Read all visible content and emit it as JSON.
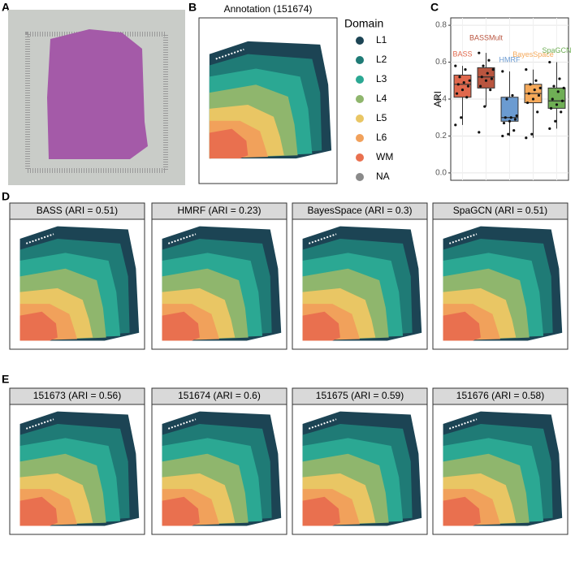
{
  "panel_a": {
    "label": "A"
  },
  "panel_b": {
    "label": "B",
    "title": "Annotation (151674)",
    "legend_title": "Domain",
    "legend": [
      {
        "name": "L1",
        "color": "#1c4454"
      },
      {
        "name": "L2",
        "color": "#1f7b76"
      },
      {
        "name": "L3",
        "color": "#2ba893"
      },
      {
        "name": "L4",
        "color": "#8fb66d"
      },
      {
        "name": "L5",
        "color": "#e9c664"
      },
      {
        "name": "L6",
        "color": "#f1a15b"
      },
      {
        "name": "WM",
        "color": "#e9704f"
      },
      {
        "name": "NA",
        "color": "#8a8a8a"
      }
    ]
  },
  "panel_c": {
    "label": "C"
  },
  "chart_data": {
    "type": "box",
    "ylabel": "ARI",
    "ylim": [
      -0.04,
      0.84
    ],
    "yticks": [
      {
        "value": 0,
        "label": "0.0"
      },
      0.2,
      0.4,
      0.6,
      0.8
    ],
    "grid": true,
    "series": [
      {
        "name": "BASS",
        "color": "#e0684d",
        "q1": 0.41,
        "median": 0.48,
        "q3": 0.53,
        "whisker_low": 0.26,
        "whisker_high": 0.58,
        "points": [
          0.58,
          0.56,
          0.52,
          0.5,
          0.49,
          0.48,
          0.47,
          0.45,
          0.43,
          0.41,
          0.3,
          0.26
        ]
      },
      {
        "name": "BASSMult",
        "color": "#b9553f",
        "q1": 0.46,
        "median": 0.52,
        "q3": 0.57,
        "whisker_low": 0.36,
        "whisker_high": 0.65,
        "points": [
          0.65,
          0.61,
          0.58,
          0.56,
          0.54,
          0.52,
          0.51,
          0.5,
          0.47,
          0.45,
          0.36,
          0.22
        ]
      },
      {
        "name": "HMRF",
        "color": "#6b9bd1",
        "q1": 0.28,
        "median": 0.3,
        "q3": 0.41,
        "whisker_low": 0.2,
        "whisker_high": 0.55,
        "points": [
          0.55,
          0.42,
          0.4,
          0.31,
          0.3,
          0.3,
          0.29,
          0.28,
          0.27,
          0.23,
          0.21,
          0.2
        ]
      },
      {
        "name": "BayesSpace",
        "color": "#f5a95a",
        "q1": 0.38,
        "median": 0.43,
        "q3": 0.48,
        "whisker_low": 0.19,
        "whisker_high": 0.56,
        "points": [
          0.56,
          0.5,
          0.48,
          0.46,
          0.45,
          0.43,
          0.42,
          0.4,
          0.38,
          0.33,
          0.21,
          0.19
        ]
      },
      {
        "name": "SpaGCN",
        "color": "#6fae55",
        "q1": 0.35,
        "median": 0.39,
        "q3": 0.46,
        "whisker_low": 0.24,
        "whisker_high": 0.6,
        "points": [
          0.6,
          0.51,
          0.47,
          0.46,
          0.44,
          0.4,
          0.39,
          0.37,
          0.35,
          0.33,
          0.28,
          0.24
        ]
      }
    ]
  },
  "panel_d": {
    "label": "D",
    "maps": [
      "BASS (ARI = 0.51)",
      "HMRF (ARI = 0.23)",
      "BayesSpace (ARI = 0.3)",
      "SpaGCN (ARI = 0.51)"
    ]
  },
  "panel_e": {
    "label": "E",
    "maps": [
      "151673 (ARI = 0.56)",
      "151674 (ARI = 0.6)",
      "151675 (ARI = 0.59)",
      "151676 (ARI = 0.58)"
    ]
  }
}
